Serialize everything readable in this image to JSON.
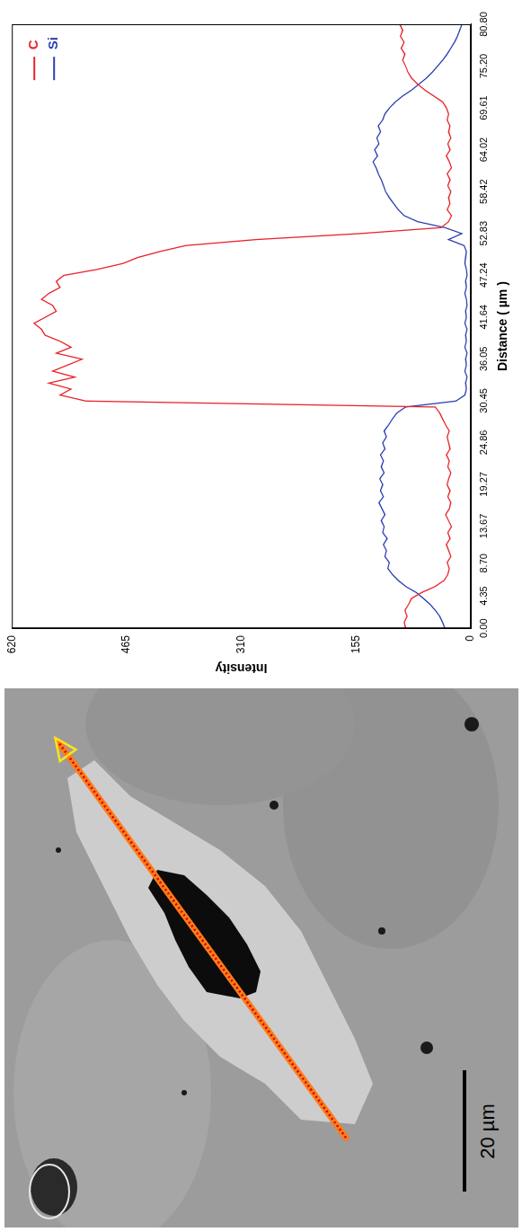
{
  "chart_data": {
    "type": "line",
    "x_label": "Distance ( µm )",
    "y_label": "Intensity",
    "xlim": [
      0,
      80.8
    ],
    "xticks": [
      {
        "value": 0,
        "label": "0.00"
      },
      4.35,
      {
        "value": 8.7,
        "label": "8.70"
      },
      13.67,
      19.27,
      24.86,
      30.45,
      36.05,
      41.64,
      47.24,
      52.83,
      58.42,
      64.02,
      69.61,
      {
        "value": 75.2,
        "label": "75.20"
      },
      {
        "value": 80.8,
        "label": "80.80"
      }
    ],
    "ylim": [
      0,
      620
    ],
    "yticks": [
      0,
      155,
      310,
      465,
      620
    ],
    "grid": false,
    "legend": "upper right",
    "x": [
      0.0,
      0.8,
      1.6,
      2.4,
      3.2,
      4.0,
      4.8,
      5.6,
      6.4,
      7.2,
      8.0,
      8.8,
      9.6,
      10.4,
      11.2,
      12.0,
      12.8,
      13.6,
      14.4,
      15.2,
      16.0,
      16.8,
      17.6,
      18.4,
      19.2,
      20.0,
      20.8,
      21.6,
      22.4,
      23.2,
      24.0,
      24.8,
      25.6,
      26.4,
      27.2,
      28.0,
      28.8,
      29.6,
      30.4,
      31.2,
      32.0,
      32.8,
      33.6,
      34.4,
      35.2,
      36.0,
      36.8,
      37.6,
      38.4,
      39.2,
      40.0,
      40.8,
      41.6,
      42.4,
      43.2,
      44.0,
      44.8,
      45.6,
      46.4,
      47.2,
      48.0,
      48.8,
      49.6,
      50.4,
      51.2,
      52.0,
      52.8,
      53.6,
      54.4,
      55.2,
      56.0,
      56.8,
      57.6,
      58.4,
      59.2,
      60.0,
      60.8,
      61.6,
      62.4,
      63.2,
      64.0,
      64.8,
      65.6,
      66.4,
      67.2,
      68.0,
      68.8,
      69.6,
      70.4,
      71.2,
      72.0,
      72.8,
      73.6,
      74.4,
      75.2,
      76.0,
      76.8,
      77.6,
      78.4,
      79.2,
      80.0,
      80.8
    ],
    "series": [
      {
        "name": "C",
        "color": "#e8232a",
        "values": [
          88,
          90,
          86,
          89,
          84,
          80,
          66,
          48,
          36,
          31,
          29,
          32,
          27,
          30,
          33,
          28,
          31,
          26,
          30,
          34,
          29,
          27,
          31,
          28,
          32,
          30,
          27,
          31,
          29,
          33,
          28,
          30,
          32,
          29,
          34,
          38,
          42,
          48,
          520,
          555,
          540,
          570,
          535,
          565,
          545,
          525,
          560,
          540,
          555,
          575,
          580,
          590,
          575,
          560,
          565,
          580,
          570,
          555,
          560,
          550,
          505,
          470,
          450,
          420,
          385,
          290,
          150,
          40,
          30,
          26,
          32,
          28,
          30,
          27,
          31,
          28,
          32,
          26,
          29,
          33,
          28,
          31,
          27,
          30,
          28,
          32,
          30,
          33,
          38,
          50,
          62,
          72,
          80,
          85,
          88,
          92,
          89,
          94,
          90,
          95,
          92,
          96
        ]
      },
      {
        "name": "Si",
        "color": "#2b3fb0",
        "values": [
          35,
          38,
          42,
          48,
          55,
          64,
          74,
          88,
          98,
          106,
          112,
          110,
          116,
          114,
          118,
          113,
          119,
          117,
          121,
          116,
          120,
          124,
          118,
          122,
          119,
          123,
          117,
          121,
          118,
          122,
          116,
          119,
          114,
          117,
          111,
          106,
          100,
          88,
          20,
          8,
          6,
          7,
          5,
          8,
          6,
          7,
          5,
          8,
          6,
          7,
          5,
          8,
          6,
          7,
          5,
          6,
          8,
          6,
          7,
          5,
          6,
          8,
          7,
          6,
          9,
          30,
          12,
          35,
          72,
          90,
          98,
          104,
          110,
          115,
          118,
          121,
          125,
          128,
          132,
          126,
          130,
          124,
          127,
          122,
          125,
          119,
          116,
          110,
          102,
          92,
          80,
          70,
          60,
          52,
          45,
          38,
          32,
          27,
          22,
          18,
          15,
          12
        ]
      }
    ]
  },
  "micrograph": {
    "scale_bar_label": "20 µm"
  }
}
